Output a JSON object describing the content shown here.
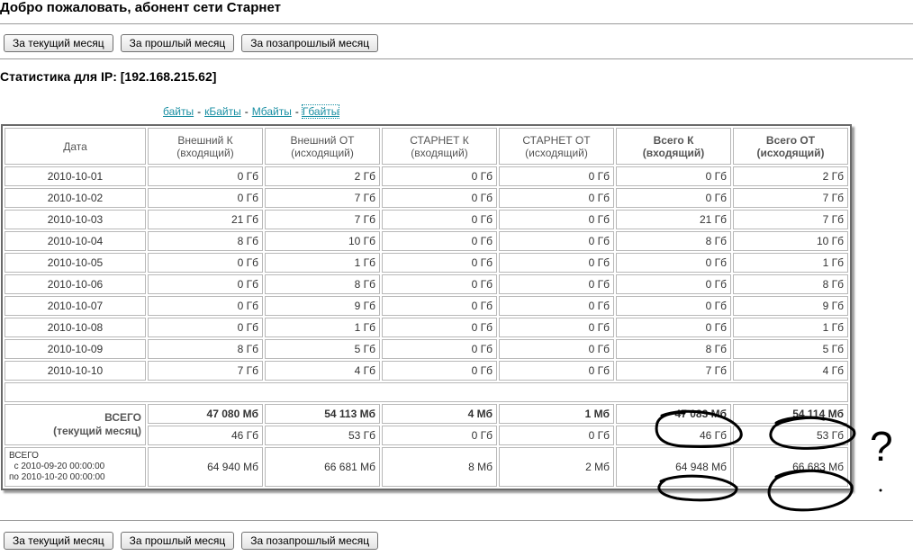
{
  "welcome": "Добро пожаловать, абонент сети Старнет",
  "buttons": {
    "current": "За текущий месяц",
    "previous": "За прошлый месяц",
    "before_previous": "За позапрошлый месяц"
  },
  "ip_title": "Статистика для IP: [192.168.215.62]",
  "units": {
    "bytes": "байты",
    "kbytes": "кБайты",
    "mbytes": "Мбайты",
    "gbytes": "Гбайты",
    "sep": "-"
  },
  "table": {
    "headers": {
      "date": "Дата",
      "ext_in": [
        "Внешний К",
        "(входящий)"
      ],
      "ext_out": [
        "Внешний ОТ",
        "(исходящий)"
      ],
      "st_in": [
        "СТАРНЕТ К",
        "(входящий)"
      ],
      "st_out": [
        "СТАРНЕТ ОТ",
        "(исходящий)"
      ],
      "total_in": [
        "Всего К",
        "(входящий)"
      ],
      "total_out": [
        "Всего ОТ",
        "(исходящий)"
      ]
    },
    "rows": [
      [
        "2010-10-01",
        "0 Гб",
        "2 Гб",
        "0 Гб",
        "0 Гб",
        "0 Гб",
        "2 Гб"
      ],
      [
        "2010-10-02",
        "0 Гб",
        "7 Гб",
        "0 Гб",
        "0 Гб",
        "0 Гб",
        "7 Гб"
      ],
      [
        "2010-10-03",
        "21 Гб",
        "7 Гб",
        "0 Гб",
        "0 Гб",
        "21 Гб",
        "7 Гб"
      ],
      [
        "2010-10-04",
        "8 Гб",
        "10 Гб",
        "0 Гб",
        "0 Гб",
        "8 Гб",
        "10 Гб"
      ],
      [
        "2010-10-05",
        "0 Гб",
        "1 Гб",
        "0 Гб",
        "0 Гб",
        "0 Гб",
        "1 Гб"
      ],
      [
        "2010-10-06",
        "0 Гб",
        "8 Гб",
        "0 Гб",
        "0 Гб",
        "0 Гб",
        "8 Гб"
      ],
      [
        "2010-10-07",
        "0 Гб",
        "9 Гб",
        "0 Гб",
        "0 Гб",
        "0 Гб",
        "9 Гб"
      ],
      [
        "2010-10-08",
        "0 Гб",
        "1 Гб",
        "0 Гб",
        "0 Гб",
        "0 Гб",
        "1 Гб"
      ],
      [
        "2010-10-09",
        "8 Гб",
        "5 Гб",
        "0 Гб",
        "0 Гб",
        "8 Гб",
        "5 Гб"
      ],
      [
        "2010-10-10",
        "7 Гб",
        "4 Гб",
        "0 Гб",
        "0 Гб",
        "7 Гб",
        "4 Гб"
      ]
    ],
    "total_label": [
      "ВСЕГО",
      "(текущий месяц)"
    ],
    "total_mb": [
      "47 080 Мб",
      "54 113 Мб",
      "4 Мб",
      "1 Мб",
      "47 083 Мб",
      "54 114 Мб"
    ],
    "total_gb": [
      "46 Гб",
      "53 Гб",
      "0 Гб",
      "0 Гб",
      "46 Гб",
      "53 Гб"
    ],
    "period_label": [
      "ВСЕГО",
      "с 2010-09-20 00:00:00",
      "по 2010-10-20 00:00:00"
    ],
    "period_mb": [
      "64 940 Мб",
      "66 681 Мб",
      "8 Мб",
      "2 Мб",
      "64 948 Мб",
      "66 683 Мб"
    ]
  },
  "annotations": {
    "question_mark": "?",
    "color": "#000000"
  }
}
